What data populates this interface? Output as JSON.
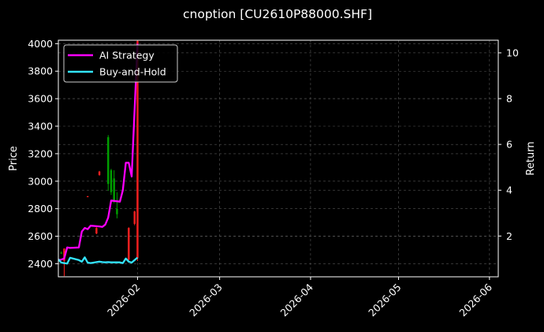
{
  "chart_data": {
    "type": "line",
    "title": "cnoption [CU2610P88000.SHF]",
    "ylabel_left": "Price",
    "ylabel_right": "Return",
    "xlabel": "",
    "x_axis": {
      "type": "date",
      "range": [
        "2026-01-05",
        "2026-06-04"
      ],
      "ticks": [
        "2026-02",
        "2026-03",
        "2026-04",
        "2026-05",
        "2026-06"
      ]
    },
    "y_left": {
      "range": [
        2305,
        4025
      ],
      "ticks": [
        2400,
        2600,
        2800,
        3000,
        3200,
        3400,
        3600,
        3800,
        4000
      ]
    },
    "y_right": {
      "range": [
        0.22,
        10.55
      ],
      "ticks": [
        2,
        4,
        6,
        8,
        10
      ]
    },
    "grid": true,
    "legend": {
      "position": "top-left"
    },
    "colors": {
      "ai": "#ff00ff",
      "buyhold": "#33e5ff",
      "candle_up": "#00a000",
      "candle_down": "#ff2020",
      "background": "#000000",
      "grid": "#555555"
    },
    "candles": [
      {
        "date": "2026-01-06",
        "open": 2475,
        "high": 2490,
        "low": 2470,
        "close": 2480
      },
      {
        "date": "2026-01-07",
        "open": 2510,
        "high": 2512,
        "low": 2310,
        "close": 2420
      },
      {
        "date": "2026-01-15",
        "open": 2890,
        "high": 2893,
        "low": 2885,
        "close": 2888
      },
      {
        "date": "2026-01-18",
        "open": 2660,
        "high": 2665,
        "low": 2615,
        "close": 2620
      },
      {
        "date": "2026-01-19",
        "open": 3070,
        "high": 3075,
        "low": 3040,
        "close": 3045
      },
      {
        "date": "2026-01-22",
        "open": 2980,
        "high": 3335,
        "low": 2930,
        "close": 3320
      },
      {
        "date": "2026-01-23",
        "open": 2920,
        "high": 3090,
        "low": 2900,
        "close": 3080
      },
      {
        "date": "2026-01-24",
        "open": 2850,
        "high": 3080,
        "low": 2840,
        "close": 3020
      },
      {
        "date": "2026-01-25",
        "open": 2760,
        "high": 2920,
        "low": 2730,
        "close": 2800
      },
      {
        "date": "2026-01-29",
        "open": 2660,
        "high": 2665,
        "low": 2420,
        "close": 2430
      },
      {
        "date": "2026-01-31",
        "open": 2780,
        "high": 2785,
        "low": 2680,
        "close": 2690
      },
      {
        "date": "2026-02-01",
        "open": 4020,
        "high": 4025,
        "low": 2420,
        "close": 2440
      }
    ],
    "series": [
      {
        "name": "AI Strategy",
        "x": [
          "2026-01-05",
          "2026-01-06",
          "2026-01-07",
          "2026-01-08",
          "2026-01-09",
          "2026-01-12",
          "2026-01-13",
          "2026-01-14",
          "2026-01-15",
          "2026-01-16",
          "2026-01-19",
          "2026-01-20",
          "2026-01-21",
          "2026-01-22",
          "2026-01-23",
          "2026-01-26",
          "2026-01-27",
          "2026-01-28",
          "2026-01-29",
          "2026-01-30",
          "2026-02-01"
        ],
        "values": [
          0.95,
          0.97,
          1.02,
          1.5,
          1.48,
          1.5,
          2.2,
          2.35,
          2.3,
          2.45,
          2.42,
          2.4,
          2.5,
          2.8,
          3.55,
          3.5,
          4.0,
          5.2,
          5.2,
          4.6,
          10.4
        ]
      },
      {
        "name": "Buy-and-Hold",
        "x": [
          "2026-01-05",
          "2026-01-06",
          "2026-01-07",
          "2026-01-08",
          "2026-01-09",
          "2026-01-12",
          "2026-01-13",
          "2026-01-14",
          "2026-01-15",
          "2026-01-16",
          "2026-01-19",
          "2026-01-20",
          "2026-01-21",
          "2026-01-22",
          "2026-01-23",
          "2026-01-26",
          "2026-01-27",
          "2026-01-28",
          "2026-01-29",
          "2026-01-30",
          "2026-02-01"
        ],
        "values": [
          0.98,
          0.84,
          0.82,
          0.8,
          1.05,
          0.95,
          0.88,
          1.07,
          0.84,
          0.82,
          0.88,
          0.86,
          0.85,
          0.86,
          0.85,
          0.85,
          0.82,
          1.02,
          0.88,
          0.84,
          1.06
        ]
      }
    ]
  }
}
